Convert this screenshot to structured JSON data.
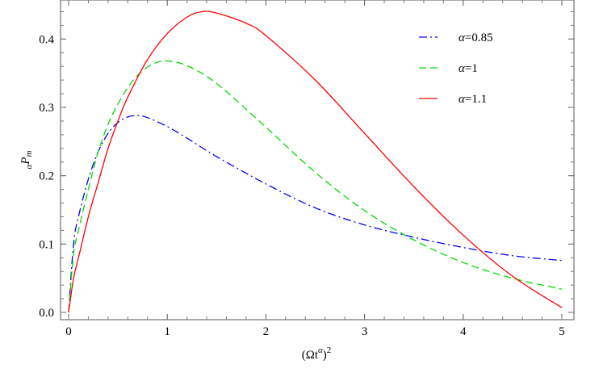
{
  "chart_data": {
    "type": "line",
    "xlim": [
      0,
      5
    ],
    "ylim": [
      0,
      0.45
    ],
    "x_ticks": [
      0,
      1,
      2,
      3,
      4,
      5
    ],
    "x_tick_labels": [
      "0",
      "1",
      "2",
      "3",
      "4",
      "5"
    ],
    "y_ticks": [
      0.0,
      0.1,
      0.2,
      0.3,
      0.4
    ],
    "y_tick_labels": [
      "0.0",
      "0.1",
      "0.2",
      "0.3",
      "0.4"
    ],
    "xlabel": {
      "base": "(Ωt",
      "sup": "α",
      "close": ")",
      "power": "2"
    },
    "ylabel": {
      "sub": "α",
      "main": "P",
      "main_sub": "m"
    },
    "grid": false,
    "legend_position": "top-right",
    "series": [
      {
        "name": "α=0.85",
        "color": "#0000ff",
        "dash": "dashdot",
        "x": [
          0,
          0.05,
          0.1,
          0.2,
          0.3,
          0.4,
          0.5,
          0.6,
          0.7,
          0.8,
          1.0,
          1.2,
          1.5,
          2.0,
          2.5,
          3.0,
          3.5,
          4.0,
          4.5,
          5.0
        ],
        "y": [
          0,
          0.1,
          0.14,
          0.195,
          0.235,
          0.262,
          0.278,
          0.286,
          0.288,
          0.285,
          0.272,
          0.255,
          0.228,
          0.188,
          0.153,
          0.128,
          0.11,
          0.095,
          0.083,
          0.076
        ]
      },
      {
        "name": "α=1",
        "color": "#00dd00",
        "dash": "dashed",
        "x": [
          0,
          0.05,
          0.1,
          0.2,
          0.3,
          0.4,
          0.5,
          0.6,
          0.7,
          0.8,
          0.9,
          1.0,
          1.2,
          1.5,
          2.0,
          2.5,
          3.0,
          3.5,
          4.0,
          4.5,
          5.0
        ],
        "y": [
          0,
          0.085,
          0.12,
          0.18,
          0.235,
          0.275,
          0.305,
          0.329,
          0.347,
          0.359,
          0.366,
          0.368,
          0.361,
          0.335,
          0.271,
          0.205,
          0.149,
          0.106,
          0.073,
          0.05,
          0.034
        ]
      },
      {
        "name": "α=1.1",
        "color": "#ff0000",
        "dash": "solid",
        "x": [
          0,
          0.05,
          0.1,
          0.2,
          0.3,
          0.4,
          0.5,
          0.6,
          0.8,
          1.0,
          1.2,
          1.35,
          1.5,
          1.8,
          2.0,
          2.5,
          3.0,
          3.5,
          4.0,
          4.5,
          5.0
        ],
        "y": [
          0,
          0.05,
          0.08,
          0.14,
          0.19,
          0.24,
          0.28,
          0.315,
          0.37,
          0.408,
          0.432,
          0.44,
          0.438,
          0.423,
          0.405,
          0.34,
          0.262,
          0.184,
          0.113,
          0.053,
          0.007
        ]
      }
    ]
  }
}
